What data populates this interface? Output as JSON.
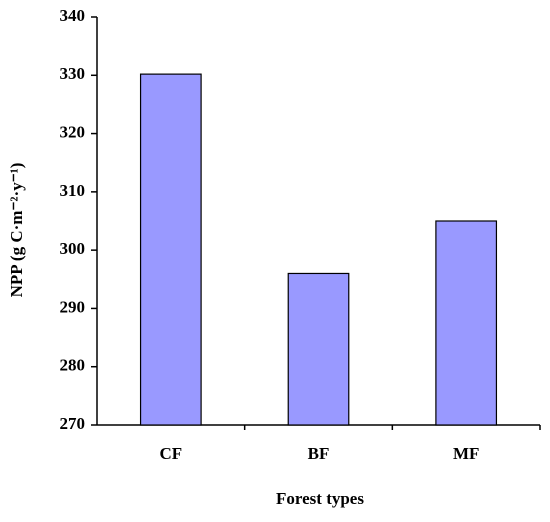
{
  "chart_data": {
    "type": "bar",
    "y_label": "NPP (g C·m⁻²·y⁻¹)",
    "x_label": "Forest types",
    "categories": [
      "CF",
      "BF",
      "MF"
    ],
    "values": [
      330.2,
      296,
      305
    ],
    "color": "#9999ff",
    "ylim": [
      270,
      340
    ],
    "yticks": [
      270,
      280,
      290,
      300,
      310,
      320,
      330,
      340
    ],
    "grid": false
  }
}
